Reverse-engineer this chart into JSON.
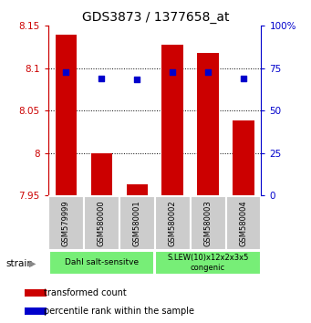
{
  "title": "GDS3873 / 1377658_at",
  "samples": [
    "GSM579999",
    "GSM580000",
    "GSM580001",
    "GSM580002",
    "GSM580003",
    "GSM580004"
  ],
  "bar_values": [
    8.14,
    8.0,
    7.963,
    8.128,
    8.118,
    8.038
  ],
  "blue_dot_values": [
    8.095,
    8.088,
    8.087,
    8.095,
    8.095,
    8.088
  ],
  "bar_bottom": 7.95,
  "ylim": [
    7.95,
    8.15
  ],
  "yticks": [
    7.95,
    8.0,
    8.05,
    8.1,
    8.15
  ],
  "ytick_labels": [
    "7.95",
    "8",
    "8.05",
    "8.1",
    "8.15"
  ],
  "right_yticks": [
    0,
    25,
    50,
    75,
    100
  ],
  "right_ytick_labels": [
    "0",
    "25",
    "50",
    "75",
    "100%"
  ],
  "bar_color": "#cc0000",
  "dot_color": "#0000cc",
  "group1_label": "Dahl salt-sensitve",
  "group2_label": "S.LEW(10)x12x2x3x5\ncongenic",
  "group1_indices": [
    0,
    1,
    2
  ],
  "group2_indices": [
    3,
    4,
    5
  ],
  "group_color": "#77ee77",
  "xlabel_strain": "strain",
  "legend_bar": "transformed count",
  "legend_dot": "percentile rank within the sample",
  "title_fontsize": 10,
  "tick_fontsize": 7.5,
  "group_bg_color": "#cccccc",
  "axis_left_color": "#cc0000",
  "axis_right_color": "#0000cc"
}
